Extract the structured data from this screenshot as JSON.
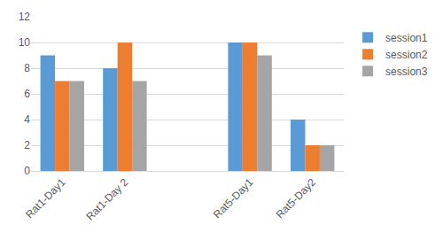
{
  "chart_data": {
    "type": "bar",
    "categories": [
      "Rat1-Day1",
      "Rat1-Day 2",
      null,
      "Rat5-Day1",
      "Rat5-Day2"
    ],
    "series": [
      {
        "name": "session1",
        "color": "#5b9bd5",
        "values": [
          9,
          8,
          null,
          10,
          4
        ]
      },
      {
        "name": "session2",
        "color": "#ed7d31",
        "values": [
          7,
          10,
          null,
          10,
          2
        ]
      },
      {
        "name": "session3",
        "color": "#a5a5a5",
        "values": [
          7,
          7,
          null,
          9,
          2
        ]
      }
    ],
    "ylim": [
      0,
      12
    ],
    "yticks": [
      0,
      2,
      4,
      6,
      8,
      10,
      12
    ],
    "grid": true,
    "legend": "right"
  }
}
